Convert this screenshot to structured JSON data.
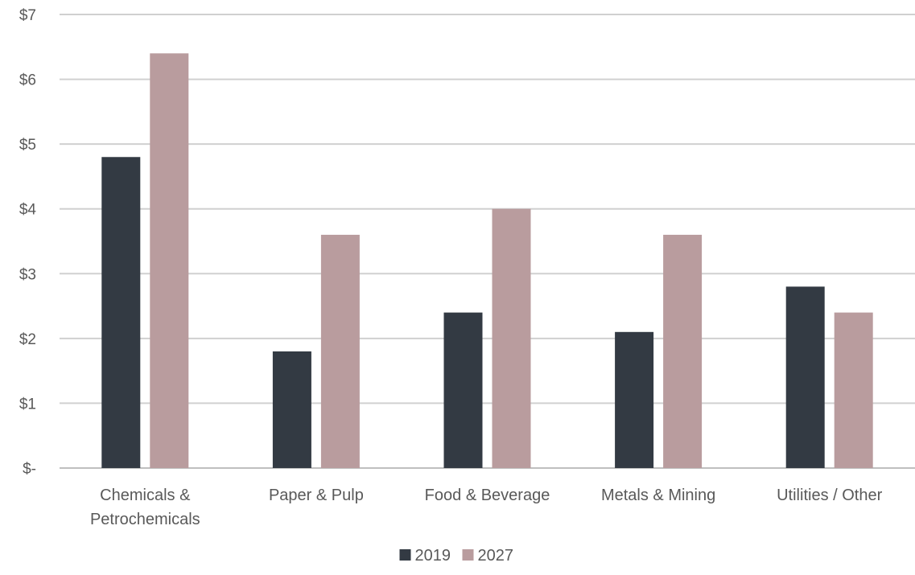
{
  "chart_data": {
    "type": "bar",
    "title": "",
    "xlabel": "",
    "ylabel": "",
    "categories": [
      [
        "Chemicals &",
        "Petrochemicals"
      ],
      [
        "Paper & Pulp"
      ],
      [
        "Food & Beverage"
      ],
      [
        "Metals & Mining"
      ],
      [
        "Utilities / Other"
      ]
    ],
    "series": [
      {
        "name": "2019",
        "color": "#333a43",
        "values": [
          4.8,
          1.8,
          2.4,
          2.1,
          2.8
        ]
      },
      {
        "name": "2027",
        "color": "#b99c9e",
        "values": [
          6.4,
          3.6,
          4.0,
          3.6,
          2.4
        ]
      }
    ],
    "y_ticks": [
      {
        "value": 0,
        "label": "$-"
      },
      {
        "value": 1,
        "label": "$1"
      },
      {
        "value": 2,
        "label": "$2"
      },
      {
        "value": 3,
        "label": "$3"
      },
      {
        "value": 4,
        "label": "$4"
      },
      {
        "value": 5,
        "label": "$5"
      },
      {
        "value": 6,
        "label": "$6"
      },
      {
        "value": 7,
        "label": "$7"
      }
    ],
    "ylim": [
      0,
      7
    ],
    "grid": true,
    "legend_position": "bottom-center"
  }
}
